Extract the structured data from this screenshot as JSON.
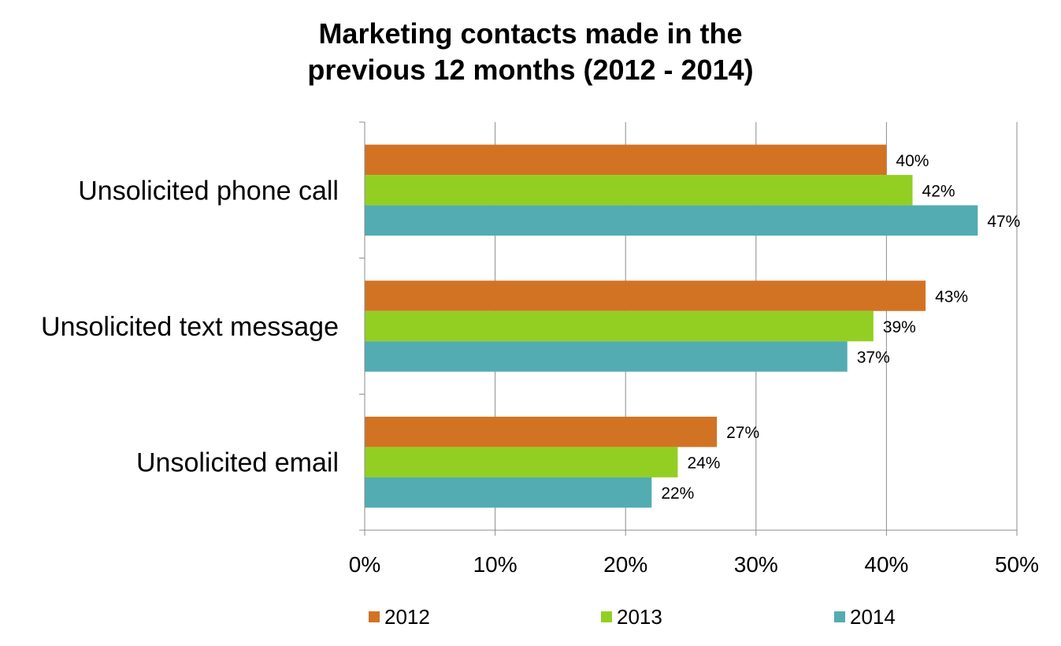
{
  "chart_data": {
    "type": "bar",
    "orientation": "horizontal",
    "title_lines": [
      "Marketing contacts made in the",
      "previous 12 months (2012 - 2014)"
    ],
    "categories": [
      "Unsolicited phone call",
      "Unsolicited text message",
      "Unsolicited email"
    ],
    "series": [
      {
        "name": "2012",
        "color": "#D27324",
        "values": [
          40,
          43,
          27
        ]
      },
      {
        "name": "2013",
        "color": "#93CF22",
        "values": [
          42,
          39,
          24
        ]
      },
      {
        "name": "2014",
        "color": "#52ACB1",
        "values": [
          47,
          37,
          22
        ]
      }
    ],
    "value_suffix": "%",
    "xlim": [
      0,
      50
    ],
    "x_ticks": [
      0,
      10,
      20,
      30,
      40,
      50
    ],
    "x_tick_labels": [
      "0%",
      "10%",
      "20%",
      "30%",
      "40%",
      "50%"
    ],
    "grid": true,
    "legend_position": "bottom"
  }
}
